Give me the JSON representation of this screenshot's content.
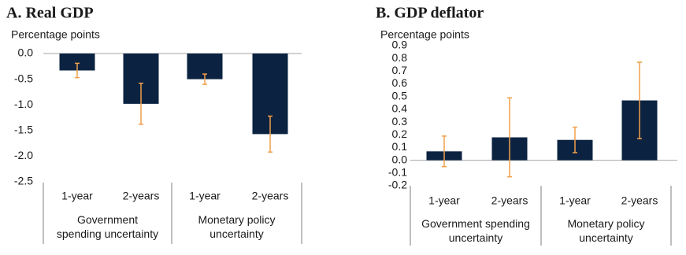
{
  "chart_data": [
    {
      "type": "bar",
      "title": "A. Real GDP",
      "y_label": "Percentage points",
      "categories": [
        "1-year",
        "2-years",
        "1-year",
        "2-years"
      ],
      "groups": [
        "Government spending uncertainty",
        "Monetary policy uncertainty"
      ],
      "values": [
        -0.33,
        -0.98,
        -0.5,
        -1.57
      ],
      "errors": [
        0.14,
        0.4,
        0.1,
        0.35
      ],
      "color": "#0b2341",
      "error_color": "#f0a04b",
      "ylim": [
        -2.5,
        0
      ],
      "yticks": [
        {
          "value": 0,
          "label": "0.0"
        },
        -0.5,
        {
          "value": -1,
          "label": "-1.0"
        },
        -1.5,
        {
          "value": -2,
          "label": "-2.0"
        },
        -2.5
      ]
    },
    {
      "type": "bar",
      "title": "B. GDP deflator",
      "y_label": "Percentage points",
      "categories": [
        "1-year",
        "2-years",
        "1-year",
        "2-years"
      ],
      "groups": [
        "Government spending uncertainty",
        "Monetary policy uncertainty"
      ],
      "values": [
        0.07,
        0.18,
        0.16,
        0.47
      ],
      "errors": [
        0.12,
        0.31,
        0.1,
        0.3
      ],
      "color": "#0b2341",
      "error_color": "#f0a04b",
      "ylim": [
        -0.2,
        0.9
      ],
      "yticks": [
        0.9,
        0.8,
        0.7,
        0.6,
        0.5,
        0.4,
        0.3,
        0.2,
        0.1,
        {
          "value": 0,
          "label": "0.0"
        },
        -0.1,
        -0.2
      ]
    }
  ]
}
